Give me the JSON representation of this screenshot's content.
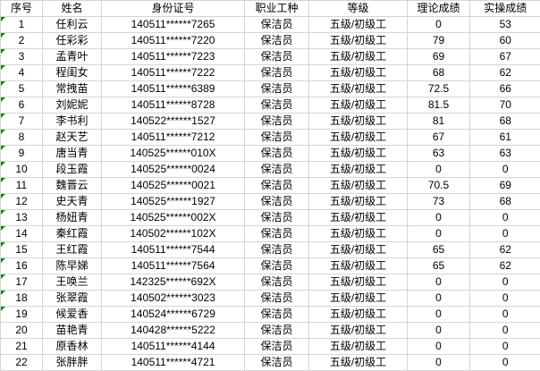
{
  "colors": {
    "border": "#d5d5d5",
    "flag_green": "#1e7e1e",
    "text": "#000000",
    "background": "#ffffff"
  },
  "table": {
    "columns": [
      {
        "key": "seq",
        "label": "序号"
      },
      {
        "key": "name",
        "label": "姓名"
      },
      {
        "key": "id",
        "label": "身份证号"
      },
      {
        "key": "job",
        "label": "职业工种"
      },
      {
        "key": "level",
        "label": "等级"
      },
      {
        "key": "theory",
        "label": "理论成绩"
      },
      {
        "key": "practical",
        "label": "实操成绩"
      }
    ],
    "rows": [
      {
        "seq": "1",
        "name": "任利云",
        "id": "140511******7265",
        "job": "保洁员",
        "level": "五级/初级工",
        "theory": "0",
        "practical": "53",
        "error_flag": true
      },
      {
        "seq": "2",
        "name": "任彩彩",
        "id": "140511******7220",
        "job": "保洁员",
        "level": "五级/初级工",
        "theory": "79",
        "practical": "60",
        "error_flag": true
      },
      {
        "seq": "3",
        "name": "孟青叶",
        "id": "140511******7223",
        "job": "保洁员",
        "level": "五级/初级工",
        "theory": "69",
        "practical": "67",
        "error_flag": true
      },
      {
        "seq": "4",
        "name": "程闺女",
        "id": "140511******7222",
        "job": "保洁员",
        "level": "五级/初级工",
        "theory": "68",
        "practical": "62",
        "error_flag": true
      },
      {
        "seq": "5",
        "name": "常拽苗",
        "id": "140511******6389",
        "job": "保洁员",
        "level": "五级/初级工",
        "theory": "72.5",
        "practical": "66",
        "error_flag": true
      },
      {
        "seq": "6",
        "name": "刘妮妮",
        "id": "140511******8728",
        "job": "保洁员",
        "level": "五级/初级工",
        "theory": "81.5",
        "practical": "70",
        "error_flag": true
      },
      {
        "seq": "7",
        "name": "李书利",
        "id": "140522******1527",
        "job": "保洁员",
        "level": "五级/初级工",
        "theory": "81",
        "practical": "68",
        "error_flag": true
      },
      {
        "seq": "8",
        "name": "赵天艺",
        "id": "140511******7212",
        "job": "保洁员",
        "level": "五级/初级工",
        "theory": "67",
        "practical": "61",
        "error_flag": true
      },
      {
        "seq": "9",
        "name": "唐当青",
        "id": "140525******010X",
        "job": "保洁员",
        "level": "五级/初级工",
        "theory": "63",
        "practical": "63",
        "error_flag": true
      },
      {
        "seq": "10",
        "name": "段玉霞",
        "id": "140525******0024",
        "job": "保洁员",
        "level": "五级/初级工",
        "theory": "0",
        "practical": "0",
        "error_flag": true
      },
      {
        "seq": "11",
        "name": "魏晋云",
        "id": "140525******0021",
        "job": "保洁员",
        "level": "五级/初级工",
        "theory": "70.5",
        "practical": "69",
        "error_flag": true
      },
      {
        "seq": "12",
        "name": "史天青",
        "id": "140525******1927",
        "job": "保洁员",
        "level": "五级/初级工",
        "theory": "73",
        "practical": "68",
        "error_flag": true
      },
      {
        "seq": "13",
        "name": "杨妞青",
        "id": "140525******002X",
        "job": "保洁员",
        "level": "五级/初级工",
        "theory": "0",
        "practical": "0",
        "error_flag": true
      },
      {
        "seq": "14",
        "name": "秦红霞",
        "id": "140502******102X",
        "job": "保洁员",
        "level": "五级/初级工",
        "theory": "0",
        "practical": "0",
        "error_flag": true
      },
      {
        "seq": "15",
        "name": "王红霞",
        "id": "140511******7544",
        "job": "保洁员",
        "level": "五级/初级工",
        "theory": "65",
        "practical": "62",
        "error_flag": true
      },
      {
        "seq": "16",
        "name": "陈早娣",
        "id": "140511******7564",
        "job": "保洁员",
        "level": "五级/初级工",
        "theory": "65",
        "practical": "62",
        "error_flag": true
      },
      {
        "seq": "17",
        "name": "王唤兰",
        "id": "142325******692X",
        "job": "保洁员",
        "level": "五级/初级工",
        "theory": "0",
        "practical": "0",
        "error_flag": true
      },
      {
        "seq": "18",
        "name": "张翠霞",
        "id": "140502******3023",
        "job": "保洁员",
        "level": "五级/初级工",
        "theory": "0",
        "practical": "0",
        "error_flag": true
      },
      {
        "seq": "19",
        "name": "候爱香",
        "id": "140524******6729",
        "job": "保洁员",
        "level": "五级/初级工",
        "theory": "0",
        "practical": "0",
        "error_flag": true
      },
      {
        "seq": "20",
        "name": "苗艳青",
        "id": "140428******5222",
        "job": "保洁员",
        "level": "五级/初级工",
        "theory": "0",
        "practical": "0",
        "error_flag": false
      },
      {
        "seq": "21",
        "name": "原香林",
        "id": "140511******4144",
        "job": "保洁员",
        "level": "五级/初级工",
        "theory": "0",
        "practical": "0",
        "error_flag": false
      },
      {
        "seq": "22",
        "name": "张胖胖",
        "id": "140511******4721",
        "job": "保洁员",
        "level": "五级/初级工",
        "theory": "0",
        "practical": "0",
        "error_flag": false
      }
    ]
  }
}
